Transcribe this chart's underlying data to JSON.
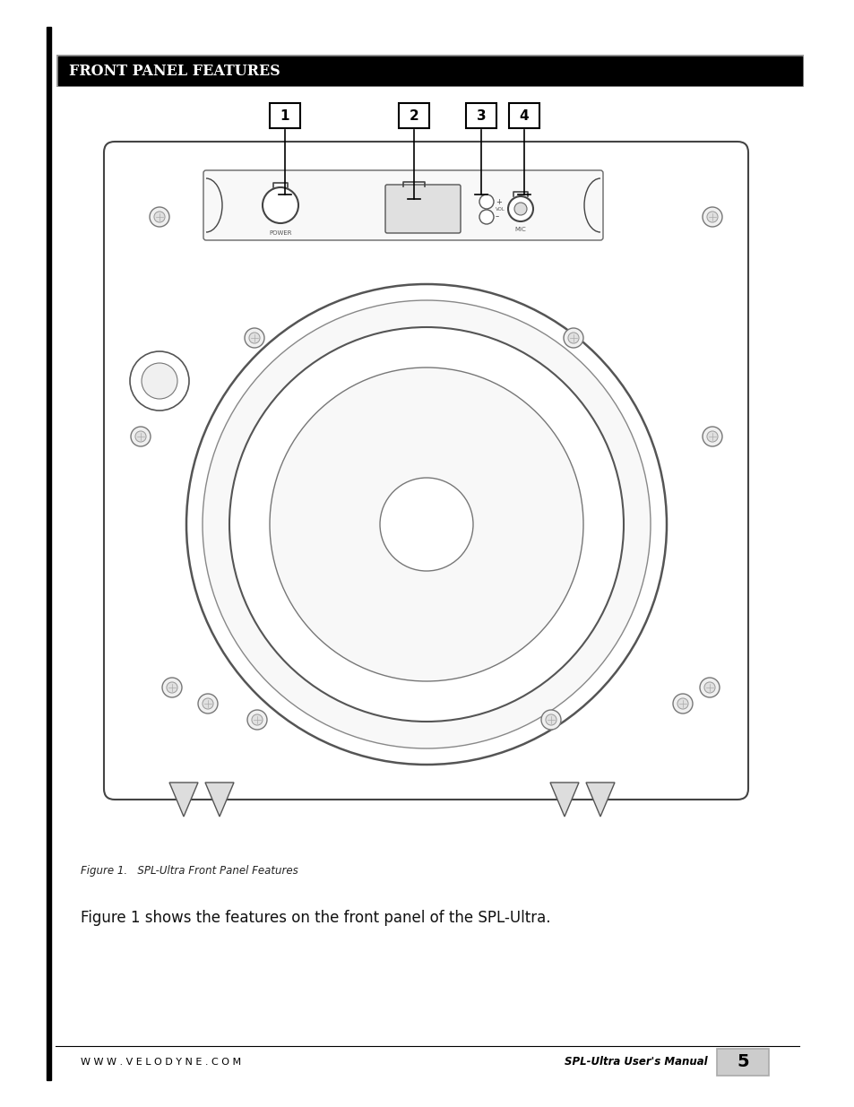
{
  "title": "FRONT PANEL FEATURES",
  "title_bg": "#000000",
  "title_color": "#ffffff",
  "page_bg": "#ffffff",
  "body_text": "Figure 1 shows the features on the front panel of the SPL-Ultra.",
  "caption": "Figure 1.   SPL-Ultra Front Panel Features",
  "footer_left": "W W W . V E L O D Y N E . C O M",
  "footer_right": "SPL-Ultra User's Manual",
  "page_number": "5"
}
